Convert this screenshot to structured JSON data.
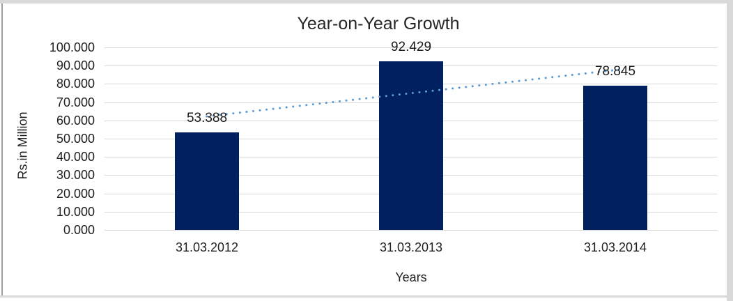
{
  "window": {
    "background": "#ffffff",
    "frame_band_color": "#d9d9d9",
    "frame_line_color": "#9e9e9e"
  },
  "chart_data": {
    "type": "bar",
    "title": "Year-on-Year Growth",
    "xlabel": "Years",
    "ylabel": "Rs.in Million",
    "categories": [
      "31.03.2012",
      "31.03.2013",
      "31.03.2014"
    ],
    "values": [
      53.388,
      92.429,
      78.845
    ],
    "data_labels": [
      "53.388",
      "92.429",
      "78.845"
    ],
    "ylim": [
      0,
      100
    ],
    "ytick_step": 10,
    "ytick_labels": [
      "0.000",
      "10.000",
      "20.000",
      "30.000",
      "40.000",
      "50.000",
      "60.000",
      "70.000",
      "80.000",
      "90.000",
      "100.000"
    ],
    "grid": "horizontal",
    "legend": "none",
    "bar_color": "#002060",
    "gridline_color": "#d9d9d9",
    "trendline": {
      "type": "linear",
      "style": "dotted",
      "color": "#5B9BD5",
      "start_value": 62.2,
      "end_value": 87.6
    }
  }
}
